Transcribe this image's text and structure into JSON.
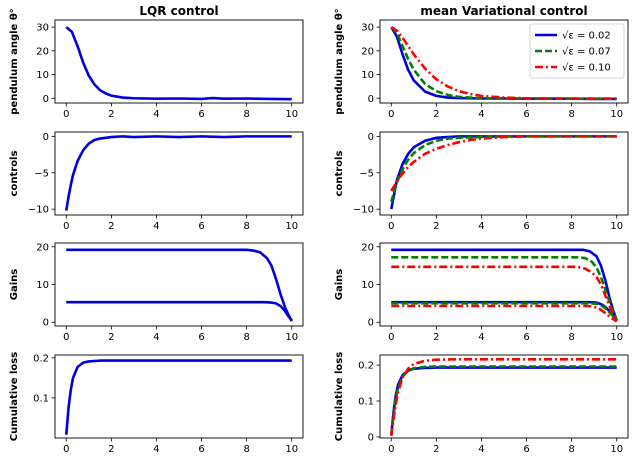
{
  "chart_data": [
    {
      "id": "p00",
      "type": "line",
      "title": "LQR control",
      "xlabel": "",
      "ylabel": "pendulum angle θ°",
      "xlim": [
        -0.5,
        10.5
      ],
      "ylim": [
        -2,
        33
      ],
      "xticks": [
        0,
        2,
        4,
        6,
        8,
        10
      ],
      "yticks": [
        0,
        10,
        20,
        30
      ],
      "grid": false,
      "series": [
        {
          "style": "solid",
          "color": "#0000dd",
          "x": [
            0,
            0.25,
            0.5,
            0.75,
            1,
            1.25,
            1.5,
            1.75,
            2,
            2.5,
            3,
            4,
            5,
            6,
            6.5,
            7,
            8,
            9,
            10
          ],
          "y": [
            30,
            28,
            22,
            15,
            9.5,
            5.8,
            3.4,
            2,
            1.1,
            0.3,
            0,
            -0.2,
            -0.1,
            -0.3,
            0.1,
            -0.2,
            -0.1,
            -0.3,
            -0.4
          ]
        }
      ]
    },
    {
      "id": "p01",
      "type": "line",
      "title": "mean Variational control",
      "xlabel": "",
      "ylabel": "pendulum angle θ°",
      "xlim": [
        -0.5,
        10.5
      ],
      "ylim": [
        -2,
        33
      ],
      "xticks": [
        0,
        2,
        4,
        6,
        8,
        10
      ],
      "yticks": [
        0,
        10,
        20,
        30
      ],
      "grid": false,
      "legend": {
        "position": "top-right",
        "entries": [
          "√ε = 0.02",
          "√ε = 0.07",
          "√ε = 0.10"
        ]
      },
      "series": [
        {
          "name": "√ε = 0.02",
          "style": "solid",
          "color": "#0000dd",
          "x": [
            0,
            0.25,
            0.5,
            0.75,
            1,
            1.5,
            2,
            2.5,
            3,
            4,
            5,
            6,
            7,
            8,
            9,
            10
          ],
          "y": [
            30,
            26,
            18.5,
            12,
            7.5,
            2.8,
            1,
            0.3,
            0.1,
            -0.1,
            -0.1,
            -0.2,
            -0.2,
            -0.2,
            -0.3,
            -0.3
          ]
        },
        {
          "name": "√ε = 0.07",
          "style": "dashed",
          "color": "#008000",
          "x": [
            0,
            0.25,
            0.5,
            0.75,
            1,
            1.5,
            2,
            2.5,
            3,
            4,
            5,
            6,
            7,
            8,
            9,
            10
          ],
          "y": [
            30,
            27.5,
            22,
            16.5,
            12,
            6,
            3,
            1.4,
            0.6,
            0,
            -0.1,
            -0.1,
            -0.1,
            -0.2,
            -0.2,
            -0.2
          ]
        },
        {
          "name": "√ε = 0.10",
          "style": "dashdot",
          "color": "#ff0000",
          "x": [
            0,
            0.25,
            0.5,
            0.75,
            1,
            1.5,
            2,
            2.5,
            3,
            3.5,
            4,
            5,
            6,
            7,
            8,
            9,
            10
          ],
          "y": [
            30,
            28.5,
            25.5,
            22,
            18.5,
            12.5,
            8,
            5,
            3,
            1.8,
            1,
            0.3,
            0,
            -0.1,
            -0.1,
            -0.1,
            -0.1
          ]
        }
      ]
    },
    {
      "id": "p10",
      "type": "line",
      "title": "",
      "xlabel": "",
      "ylabel": "controls",
      "xlim": [
        -0.5,
        10.5
      ],
      "ylim": [
        -10.8,
        0.6
      ],
      "xticks": [
        0,
        2,
        4,
        6,
        8,
        10
      ],
      "yticks": [
        -10,
        -5,
        0
      ],
      "grid": false,
      "series": [
        {
          "style": "solid",
          "color": "#0000dd",
          "x": [
            0,
            0.1,
            0.2,
            0.3,
            0.5,
            0.75,
            1,
            1.25,
            1.5,
            2,
            2.5,
            3,
            4,
            5,
            6,
            7,
            8,
            9,
            10
          ],
          "y": [
            -10.2,
            -8.3,
            -6.7,
            -5.3,
            -3.4,
            -1.9,
            -1,
            -0.5,
            -0.3,
            -0.1,
            0,
            -0.1,
            0,
            -0.1,
            0,
            -0.1,
            0,
            0,
            0
          ]
        }
      ]
    },
    {
      "id": "p11",
      "type": "line",
      "title": "",
      "xlabel": "",
      "ylabel": "controls",
      "xlim": [
        -0.5,
        10.5
      ],
      "ylim": [
        -10.8,
        0.6
      ],
      "xticks": [
        0,
        2,
        4,
        6,
        8,
        10
      ],
      "yticks": [
        -10,
        -5,
        0
      ],
      "grid": false,
      "series": [
        {
          "name": "√ε = 0.02",
          "style": "solid",
          "color": "#0000dd",
          "x": [
            0,
            0.25,
            0.5,
            0.75,
            1,
            1.5,
            2,
            2.5,
            3,
            4,
            5,
            6,
            7,
            8,
            9,
            10
          ],
          "y": [
            -10,
            -6,
            -3.8,
            -2.4,
            -1.5,
            -0.6,
            -0.2,
            -0.1,
            0,
            0,
            0,
            0,
            0,
            0,
            0,
            0
          ]
        },
        {
          "name": "√ε = 0.07",
          "style": "dashed",
          "color": "#008000",
          "x": [
            0,
            0.25,
            0.5,
            0.75,
            1,
            1.5,
            2,
            2.5,
            3,
            4,
            5,
            6,
            7,
            8,
            9,
            10
          ],
          "y": [
            -9,
            -6.3,
            -4.5,
            -3.2,
            -2.3,
            -1.2,
            -0.6,
            -0.3,
            -0.2,
            -0.1,
            0,
            0,
            0,
            0,
            0,
            0
          ]
        },
        {
          "name": "√ε = 0.10",
          "style": "dashdot",
          "color": "#ff0000",
          "x": [
            0,
            0.25,
            0.5,
            0.75,
            1,
            1.5,
            2,
            2.5,
            3,
            3.5,
            4,
            5,
            6,
            7,
            8,
            9,
            10
          ],
          "y": [
            -7.5,
            -6.2,
            -5.1,
            -4.2,
            -3.5,
            -2.4,
            -1.7,
            -1.2,
            -0.8,
            -0.5,
            -0.3,
            -0.1,
            0,
            0,
            0,
            0,
            0
          ]
        }
      ]
    },
    {
      "id": "p20",
      "type": "line",
      "title": "",
      "xlabel": "",
      "ylabel": "Gains",
      "xlim": [
        -0.5,
        10.5
      ],
      "ylim": [
        -1,
        21
      ],
      "xticks": [
        0,
        2,
        4,
        6,
        8,
        10
      ],
      "yticks": [
        0,
        10,
        20
      ],
      "grid": false,
      "series": [
        {
          "style": "solid",
          "color": "#0000dd",
          "x": [
            0,
            8,
            8.3,
            8.6,
            8.9,
            9.1,
            9.3,
            9.5,
            9.7,
            9.85,
            10
          ],
          "y": [
            19.2,
            19.2,
            19,
            18.5,
            17,
            15,
            11.5,
            7.5,
            4,
            2,
            0.3
          ]
        },
        {
          "style": "solid",
          "color": "#0000dd",
          "x": [
            0,
            8.8,
            9.1,
            9.3,
            9.5,
            9.7,
            9.85,
            10
          ],
          "y": [
            5.3,
            5.3,
            5.2,
            5,
            4.3,
            3,
            1.6,
            0.6
          ]
        }
      ]
    },
    {
      "id": "p21",
      "type": "line",
      "title": "",
      "xlabel": "",
      "ylabel": "Gains",
      "xlim": [
        -0.5,
        10.5
      ],
      "ylim": [
        -1,
        21
      ],
      "xticks": [
        0,
        2,
        4,
        6,
        8,
        10
      ],
      "yticks": [
        0,
        10,
        20
      ],
      "grid": false,
      "series": [
        {
          "name": "√ε = 0.02",
          "style": "solid",
          "color": "#0000dd",
          "x": [
            0,
            8.5,
            8.8,
            9.1,
            9.3,
            9.5,
            9.7,
            9.85,
            10
          ],
          "y": [
            19.2,
            19.2,
            18.8,
            17.5,
            15,
            11,
            6,
            3,
            0.5
          ]
        },
        {
          "name": "√ε = 0.02",
          "style": "solid",
          "color": "#0000dd",
          "x": [
            0,
            8.8,
            9.1,
            9.3,
            9.5,
            9.7,
            9.85,
            10
          ],
          "y": [
            5.3,
            5.3,
            5.2,
            4.8,
            4,
            2.8,
            1.5,
            0.6
          ]
        },
        {
          "name": "√ε = 0.07",
          "style": "dashed",
          "color": "#008000",
          "x": [
            0,
            8.3,
            8.6,
            8.9,
            9.1,
            9.3,
            9.5,
            9.7,
            10
          ],
          "y": [
            17.2,
            17.2,
            17,
            16,
            14.5,
            12,
            8.5,
            5,
            0.4
          ]
        },
        {
          "name": "√ε = 0.07",
          "style": "dashed",
          "color": "#008000",
          "x": [
            0,
            8.8,
            9.1,
            9.3,
            9.5,
            9.7,
            10
          ],
          "y": [
            5,
            5,
            4.9,
            4.5,
            3.7,
            2.5,
            0.6
          ]
        },
        {
          "name": "√ε = 0.10",
          "style": "dashdot",
          "color": "#ff0000",
          "x": [
            0,
            8,
            8.3,
            8.6,
            8.9,
            9.1,
            9.3,
            9.5,
            9.7,
            10
          ],
          "y": [
            14.7,
            14.7,
            14.6,
            14.2,
            13.2,
            12,
            10,
            7,
            4,
            0.3
          ]
        },
        {
          "name": "√ε = 0.10",
          "style": "dashdot",
          "color": "#ff0000",
          "x": [
            0,
            8.6,
            8.9,
            9.1,
            9.3,
            9.5,
            9.7,
            10
          ],
          "y": [
            4.3,
            4.3,
            4.2,
            3.9,
            3.3,
            2.4,
            1.4,
            0.2
          ]
        }
      ]
    },
    {
      "id": "p30",
      "type": "line",
      "title": "",
      "xlabel": "",
      "ylabel": "Cumulative loss",
      "xlim": [
        -0.5,
        10.5
      ],
      "ylim": [
        0,
        0.207
      ],
      "xticks": [
        0,
        2,
        4,
        6,
        8,
        10
      ],
      "yticks": [
        0.1,
        0.2
      ],
      "grid": false,
      "series": [
        {
          "style": "solid",
          "color": "#0000dd",
          "x": [
            0,
            0.1,
            0.2,
            0.3,
            0.5,
            0.75,
            1,
            1.5,
            2,
            4,
            6,
            8,
            10
          ],
          "y": [
            0.008,
            0.075,
            0.12,
            0.15,
            0.177,
            0.188,
            0.191,
            0.193,
            0.193,
            0.193,
            0.193,
            0.193,
            0.193
          ]
        }
      ]
    },
    {
      "id": "p31",
      "type": "line",
      "title": "",
      "xlabel": "",
      "ylabel": "Cumulative loss",
      "xlim": [
        -0.5,
        10.5
      ],
      "ylim": [
        -0.003,
        0.228
      ],
      "xticks": [
        0,
        2,
        4,
        6,
        8,
        10
      ],
      "yticks": [
        0,
        0.1,
        0.2
      ],
      "grid": false,
      "series": [
        {
          "name": "√ε = 0.02",
          "style": "solid",
          "color": "#0000dd",
          "x": [
            0,
            0.1,
            0.2,
            0.3,
            0.5,
            0.75,
            1,
            1.5,
            2,
            4,
            6,
            8,
            10
          ],
          "y": [
            0.005,
            0.07,
            0.115,
            0.145,
            0.172,
            0.185,
            0.19,
            0.192,
            0.193,
            0.193,
            0.193,
            0.193,
            0.193
          ]
        },
        {
          "name": "√ε = 0.07",
          "style": "dashed",
          "color": "#008000",
          "x": [
            0,
            0.1,
            0.2,
            0.3,
            0.5,
            0.75,
            1,
            1.5,
            2,
            4,
            6,
            8,
            10
          ],
          "y": [
            0.004,
            0.06,
            0.105,
            0.135,
            0.168,
            0.185,
            0.191,
            0.195,
            0.196,
            0.196,
            0.196,
            0.196,
            0.196
          ]
        },
        {
          "name": "√ε = 0.10",
          "style": "dashdot",
          "color": "#ff0000",
          "x": [
            0,
            0.1,
            0.2,
            0.3,
            0.5,
            0.75,
            1,
            1.5,
            2,
            3,
            4,
            6,
            8,
            10
          ],
          "y": [
            0.003,
            0.05,
            0.09,
            0.125,
            0.165,
            0.19,
            0.203,
            0.212,
            0.215,
            0.216,
            0.216,
            0.216,
            0.216,
            0.216
          ]
        }
      ]
    }
  ]
}
